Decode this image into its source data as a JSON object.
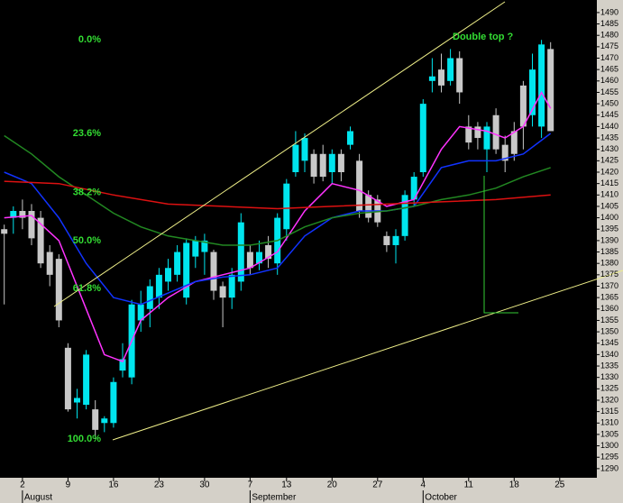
{
  "chart_data": {
    "type": "candlestick",
    "categories": [
      null,
      null,
      "2",
      null,
      null,
      null,
      null,
      "9",
      null,
      null,
      null,
      null,
      "16",
      null,
      null,
      null,
      null,
      "23",
      null,
      null,
      null,
      null,
      "30",
      null,
      null,
      null,
      null,
      "7",
      null,
      null,
      null,
      "13",
      null,
      null,
      null,
      null,
      "20",
      null,
      null,
      null,
      null,
      "27",
      null,
      null,
      null,
      null,
      "4",
      null,
      null,
      null,
      null,
      "11",
      null,
      null,
      null,
      null,
      "18",
      null,
      null,
      null,
      null,
      "25"
    ],
    "months": [
      {
        "label": "August",
        "category_index": 2
      },
      {
        "label": "September",
        "category_index": 27
      },
      {
        "label": "October",
        "category_index": 46
      }
    ],
    "open": [
      1395,
      1400,
      1403,
      1403,
      1400,
      1385,
      1382,
      1343,
      1319,
      1318,
      1316,
      1310,
      1310,
      1333,
      1330,
      1355,
      1360,
      1365,
      1372,
      1375,
      1365,
      1383,
      1385,
      1385,
      1370,
      1365,
      1372,
      1385,
      1380,
      1388,
      1380,
      1395,
      1420,
      1425,
      1428,
      1428,
      1420,
      1428,
      1432,
      1425,
      1410,
      1408,
      1392,
      1388,
      1392,
      1408,
      1420,
      1460,
      1465,
      1460,
      1470,
      1440,
      1440,
      1430,
      1445,
      1432,
      1438,
      1458,
      1445,
      1440,
      1474,
      null
    ],
    "high": [
      1397,
      1405,
      1408,
      1406,
      1403,
      1388,
      1384,
      1345,
      1325,
      1342,
      1320,
      1313,
      1330,
      1345,
      1364,
      1368,
      1373,
      1378,
      1382,
      1388,
      1391,
      1392,
      1393,
      1386,
      1372,
      1378,
      1402,
      1388,
      1390,
      1392,
      1402,
      1417,
      1438,
      1437,
      1430,
      1432,
      1430,
      1430,
      1440,
      1428,
      1412,
      1410,
      1394,
      1395,
      1412,
      1420,
      1452,
      1470,
      1472,
      1474,
      1473,
      1445,
      1442,
      1442,
      1448,
      1436,
      1442,
      1460,
      1472,
      1478,
      1477,
      null
    ],
    "low": [
      1362,
      1393,
      1395,
      1388,
      1378,
      1370,
      1352,
      1315,
      1312,
      1316,
      1303,
      1306,
      1308,
      1330,
      1327,
      1350,
      1352,
      1360,
      1368,
      1372,
      1362,
      1378,
      1375,
      1364,
      1352,
      1360,
      1368,
      1375,
      1377,
      1378,
      1375,
      1390,
      1418,
      1420,
      1415,
      1416,
      1415,
      1416,
      1430,
      1400,
      1398,
      1396,
      1385,
      1380,
      1390,
      1405,
      1418,
      1455,
      1455,
      1458,
      1450,
      1430,
      1430,
      1420,
      1428,
      1420,
      1425,
      1430,
      1440,
      1435,
      1438,
      null
    ],
    "close": [
      1393,
      1403,
      1400,
      1391,
      1380,
      1375,
      1355,
      1316,
      1321,
      1340,
      1307,
      1312,
      1328,
      1338,
      1362,
      1362,
      1370,
      1375,
      1378,
      1385,
      1389,
      1390,
      1390,
      1368,
      1365,
      1375,
      1398,
      1378,
      1385,
      1382,
      1400,
      1415,
      1432,
      1435,
      1418,
      1418,
      1428,
      1420,
      1438,
      1403,
      1400,
      1398,
      1388,
      1392,
      1410,
      1418,
      1450,
      1462,
      1458,
      1470,
      1455,
      1433,
      1435,
      1440,
      1430,
      1425,
      1428,
      1440,
      1465,
      1476,
      1438,
      null
    ],
    "up_color": "#00e5ee",
    "down_color": "#c8c8c8",
    "lines": [
      {
        "color": "#ff33ff",
        "x": [
          0,
          3,
          6,
          9,
          11,
          13,
          15,
          18,
          21,
          24,
          27,
          30,
          33,
          36,
          39,
          42,
          45,
          48,
          50,
          53,
          55,
          57,
          59,
          60
        ],
        "values": [
          1400,
          1401,
          1390,
          1360,
          1340,
          1337,
          1355,
          1365,
          1372,
          1375,
          1378,
          1385,
          1403,
          1415,
          1412,
          1405,
          1408,
          1430,
          1440,
          1438,
          1435,
          1440,
          1455,
          1448
        ]
      },
      {
        "color": "#1133ff",
        "x": [
          0,
          3,
          6,
          9,
          12,
          15,
          18,
          21,
          24,
          27,
          30,
          33,
          36,
          39,
          42,
          45,
          48,
          51,
          54,
          57,
          60
        ],
        "values": [
          1420,
          1415,
          1400,
          1380,
          1365,
          1362,
          1367,
          1372,
          1374,
          1375,
          1378,
          1392,
          1400,
          1403,
          1403,
          1405,
          1422,
          1425,
          1425,
          1428,
          1437
        ]
      },
      {
        "color": "#228822",
        "x": [
          0,
          3,
          6,
          9,
          12,
          15,
          18,
          21,
          24,
          27,
          30,
          33,
          36,
          39,
          42,
          45,
          48,
          51,
          54,
          57,
          60
        ],
        "values": [
          1436,
          1428,
          1418,
          1410,
          1402,
          1396,
          1392,
          1390,
          1388,
          1388,
          1390,
          1396,
          1400,
          1402,
          1403,
          1405,
          1408,
          1410,
          1413,
          1418,
          1422
        ]
      },
      {
        "color": "#dd1111",
        "x": [
          0,
          6,
          12,
          18,
          24,
          30,
          36,
          42,
          48,
          54,
          60
        ],
        "values": [
          1416,
          1415,
          1410,
          1406,
          1405,
          1404,
          1405,
          1406,
          1407,
          1408,
          1410
        ]
      }
    ],
    "fib_levels": [
      {
        "label": "0.0%",
        "value": 1478
      },
      {
        "label": "23.6%",
        "value": 1437
      },
      {
        "label": "38.2%",
        "value": 1411
      },
      {
        "label": "50.0%",
        "value": 1390
      },
      {
        "label": "61.8%",
        "value": 1369
      },
      {
        "label": "100.0%",
        "value": 1303
      }
    ],
    "annotation": "Double top ?",
    "ylim": [
      1286,
      1495.5
    ],
    "yticks": [
      1290,
      1295,
      1300,
      1305,
      1310,
      1315,
      1320,
      1325,
      1330,
      1335,
      1340,
      1345,
      1350,
      1355,
      1360,
      1365,
      1370,
      1375,
      1380,
      1385,
      1390,
      1395,
      1400,
      1405,
      1410,
      1415,
      1420,
      1425,
      1430,
      1435,
      1440,
      1445,
      1450,
      1455,
      1460,
      1465,
      1470,
      1475,
      1480,
      1485,
      1490
    ]
  }
}
